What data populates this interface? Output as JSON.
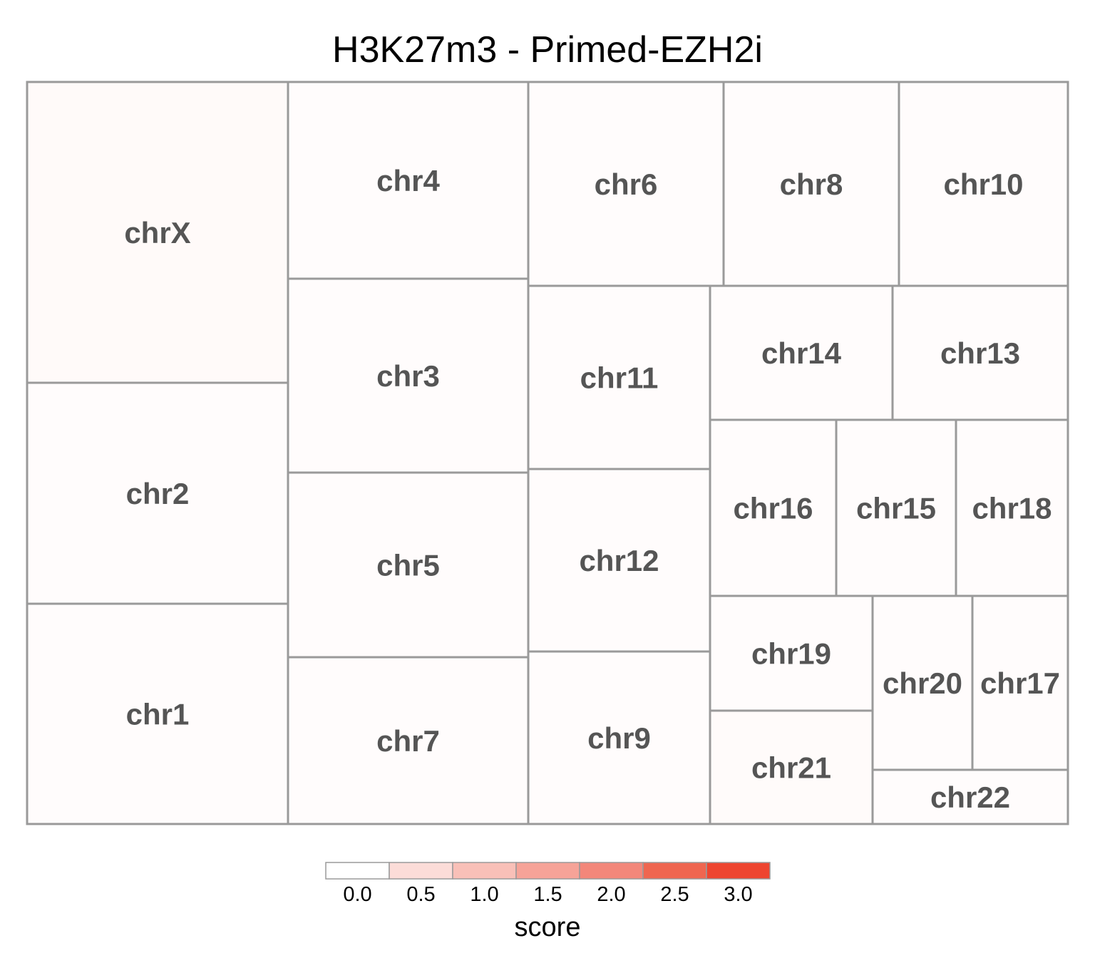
{
  "chart_data": {
    "type": "treemap",
    "title": "H3K27m3 - Primed-EZH2i",
    "tiles": [
      {
        "label": "chrX",
        "score": 0.08
      },
      {
        "label": "chr2",
        "score": 0.05
      },
      {
        "label": "chr1",
        "score": 0.05
      },
      {
        "label": "chr4",
        "score": 0.05
      },
      {
        "label": "chr3",
        "score": 0.05
      },
      {
        "label": "chr5",
        "score": 0.05
      },
      {
        "label": "chr7",
        "score": 0.05
      },
      {
        "label": "chr6",
        "score": 0.05
      },
      {
        "label": "chr11",
        "score": 0.05
      },
      {
        "label": "chr12",
        "score": 0.05
      },
      {
        "label": "chr9",
        "score": 0.05
      },
      {
        "label": "chr8",
        "score": 0.05
      },
      {
        "label": "chr10",
        "score": 0.05
      },
      {
        "label": "chr14",
        "score": 0.05
      },
      {
        "label": "chr13",
        "score": 0.05
      },
      {
        "label": "chr16",
        "score": 0.05
      },
      {
        "label": "chr15",
        "score": 0.05
      },
      {
        "label": "chr18",
        "score": 0.05
      },
      {
        "label": "chr19",
        "score": 0.05
      },
      {
        "label": "chr21",
        "score": 0.07
      },
      {
        "label": "chr20",
        "score": 0.05
      },
      {
        "label": "chr17",
        "score": 0.05
      },
      {
        "label": "chr22",
        "score": 0.05
      }
    ],
    "legend": {
      "title": "score",
      "ticks": [
        "0.0",
        "0.5",
        "1.0",
        "1.5",
        "2.0",
        "2.5",
        "3.0"
      ],
      "colors": [
        "#ffffff",
        "#fcdcd8",
        "#f9c0b8",
        "#f6a398",
        "#f3877a",
        "#ef6650",
        "#ee4530"
      ]
    }
  }
}
